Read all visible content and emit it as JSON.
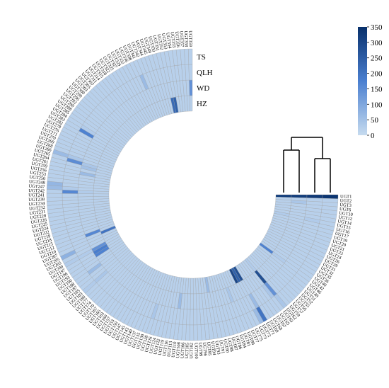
{
  "chart_data": {
    "type": "heatmap",
    "layout": "circular",
    "tracks": [
      "TS",
      "QLH",
      "WD",
      "HZ"
    ],
    "genes": [
      "UGT1",
      "UGT2",
      "UGT3",
      "UGT6",
      "UGT10",
      "UGT12",
      "UGT14",
      "UGT15",
      "UGT16",
      "UGT17",
      "UGT19",
      "UGT20",
      "UGT21",
      "UGT23",
      "UGT24",
      "UGT26",
      "UGT29",
      "UGT31",
      "UGT32",
      "UGT35",
      "UGT36",
      "UGT40",
      "UGT42",
      "UGT46",
      "UGT49",
      "UGT51",
      "UGT52",
      "UGT55",
      "UGT56",
      "UGT57",
      "UGT59",
      "UGT62",
      "UGT63",
      "UGT65",
      "UGT67",
      "UGT68",
      "UGT69",
      "UGT71",
      "UGT72",
      "UGT73",
      "UGT75",
      "UGT77",
      "UGT80",
      "UGT81",
      "UGT84",
      "UGT86",
      "UGT87",
      "UGT88",
      "UGT90",
      "UGT91",
      "UGT93",
      "UGT94",
      "UGT95",
      "UGT96",
      "UGT99",
      "UGT100",
      "UGT102",
      "UGT105",
      "UGT106",
      "UGT108",
      "UGT110",
      "UGT113",
      "UGT116",
      "UGT119",
      "UGT122",
      "UGT124",
      "UGT126",
      "UGT128",
      "UGT130",
      "UGT135",
      "UGT137",
      "UGT140",
      "UGT143",
      "UGT145",
      "UGT147",
      "UGT150",
      "UGT153",
      "UGT157",
      "UGT160",
      "UGT163",
      "UGT165",
      "UGT167",
      "UGT170",
      "UGT174",
      "UGT177",
      "UGT180",
      "UGT183",
      "UGT185",
      "UGT187",
      "UGT188",
      "UGT190",
      "UGT193",
      "UGT196",
      "UGT197",
      "UGT200",
      "UGT203",
      "UGT205",
      "UGT207",
      "UGT210",
      "UGT212",
      "UGT215",
      "UGT218",
      "UGT219",
      "UGT222",
      "UGT224",
      "UGT225",
      "UGT226",
      "UGT228",
      "UGT231",
      "UGT232",
      "UGT234",
      "UGT238",
      "UGT241",
      "UGT242",
      "UGT247",
      "UGT248",
      "UGT250",
      "UGT253",
      "UGT256",
      "UGT259",
      "UGT261",
      "UGT264",
      "UGT265",
      "UGT266",
      "UGT268",
      "UGT269",
      "UGT270",
      "UGT271",
      "UGT276",
      "UGT278",
      "UGT282",
      "UGT283",
      "UGT284",
      "UGT285",
      "UGT288",
      "UGT290",
      "UGT292",
      "UGT296",
      "UGT299",
      "UGT300",
      "UGT303",
      "UGT305",
      "UGT307",
      "UGT311",
      "UGT314",
      "UGT315",
      "UGT318",
      "UGT322",
      "UGT325",
      "UGT327",
      "UGT329",
      "UGT332",
      "UGT336",
      "UGT338",
      "UGT341",
      "UGT342",
      "UGT344",
      "UGT345",
      "UGT349",
      "UGT350",
      "UGT351",
      "UGT352",
      "UGT353",
      "UGT354",
      "UGT355",
      "UGT356",
      "UGT357",
      "UGT358",
      "UGT359"
    ],
    "highlights": [
      {
        "gene": "UGT1",
        "TS": 340,
        "QLH": 330,
        "WD": 320,
        "HZ": 320
      },
      {
        "gene": "UGT3",
        "TS": 20,
        "QLH": 20,
        "WD": 40,
        "HZ": 20
      },
      {
        "gene": "UGT15",
        "TS": 20,
        "QLH": 30,
        "WD": 20,
        "HZ": 30
      },
      {
        "gene": "UGT42",
        "TS": 20,
        "QLH": 20,
        "WD": 30,
        "HZ": 170
      },
      {
        "gene": "UGT62",
        "TS": 40,
        "QLH": 140,
        "WD": 280,
        "HZ": 30
      },
      {
        "gene": "UGT63",
        "TS": 20,
        "QLH": 40,
        "WD": 20,
        "HZ": 20
      },
      {
        "gene": "UGT71",
        "TS": 200,
        "QLH": 60,
        "WD": 20,
        "HZ": 280
      },
      {
        "gene": "UGT72",
        "TS": 60,
        "QLH": 20,
        "WD": 20,
        "HZ": 240
      },
      {
        "gene": "UGT73",
        "TS": 20,
        "QLH": 20,
        "WD": 20,
        "HZ": 300
      },
      {
        "gene": "UGT81",
        "TS": 20,
        "QLH": 20,
        "WD": 40,
        "HZ": 20
      },
      {
        "gene": "UGT93",
        "TS": 20,
        "QLH": 20,
        "WD": 20,
        "HZ": 60
      },
      {
        "gene": "UGT110",
        "TS": 20,
        "QLH": 20,
        "WD": 60,
        "HZ": 20
      },
      {
        "gene": "UGT128",
        "TS": 20,
        "QLH": 40,
        "WD": 20,
        "HZ": 20
      },
      {
        "gene": "UGT183",
        "TS": 30,
        "QLH": 40,
        "WD": 20,
        "HZ": 20
      },
      {
        "gene": "UGT188",
        "TS": 20,
        "QLH": 60,
        "WD": 20,
        "HZ": 20
      },
      {
        "gene": "UGT196",
        "TS": 20,
        "QLH": 20,
        "WD": 170,
        "HZ": 20
      },
      {
        "gene": "UGT197",
        "TS": 20,
        "QLH": 20,
        "WD": 180,
        "HZ": 20
      },
      {
        "gene": "UGT200",
        "TS": 30,
        "QLH": 30,
        "WD": 140,
        "HZ": 20
      },
      {
        "gene": "UGT205",
        "TS": 80,
        "QLH": 20,
        "WD": 20,
        "HZ": 20
      },
      {
        "gene": "UGT210",
        "TS": 20,
        "QLH": 20,
        "WD": 20,
        "HZ": 200
      },
      {
        "gene": "UGT212",
        "TS": 20,
        "QLH": 20,
        "WD": 160,
        "HZ": 20
      },
      {
        "gene": "UGT242",
        "TS": 20,
        "QLH": 160,
        "WD": 30,
        "HZ": 20
      },
      {
        "gene": "UGT247",
        "TS": 60,
        "QLH": 30,
        "WD": 20,
        "HZ": 20
      },
      {
        "gene": "UGT248",
        "TS": 70,
        "QLH": 20,
        "WD": 20,
        "HZ": 20
      },
      {
        "gene": "UGT259",
        "TS": 20,
        "QLH": 20,
        "WD": 60,
        "HZ": 20
      },
      {
        "gene": "UGT264",
        "TS": 20,
        "QLH": 20,
        "WD": 50,
        "HZ": 20
      },
      {
        "gene": "UGT265",
        "TS": 20,
        "QLH": 150,
        "WD": 40,
        "HZ": 20
      },
      {
        "gene": "UGT266",
        "TS": 60,
        "QLH": 40,
        "WD": 20,
        "HZ": 20
      },
      {
        "gene": "UGT283",
        "TS": 20,
        "QLH": 170,
        "WD": 20,
        "HZ": 20
      },
      {
        "gene": "UGT284",
        "TS": 20,
        "QLH": 30,
        "WD": 20,
        "HZ": 20
      },
      {
        "gene": "UGT325",
        "TS": 20,
        "QLH": 20,
        "WD": 20,
        "HZ": 20
      },
      {
        "gene": "UGT341",
        "TS": 20,
        "QLH": 60,
        "WD": 20,
        "HZ": 20
      },
      {
        "gene": "UGT352",
        "TS": 20,
        "QLH": 20,
        "WD": 20,
        "HZ": 220
      },
      {
        "gene": "UGT353",
        "TS": 20,
        "QLH": 20,
        "WD": 20,
        "HZ": 240
      },
      {
        "gene": "UGT359",
        "TS": 20,
        "QLH": 20,
        "WD": 140,
        "HZ": 20
      }
    ],
    "default_value": 20,
    "colorbar": {
      "min": 0,
      "max": 350,
      "ticks": [
        0,
        50,
        100,
        150,
        200,
        250,
        300,
        350
      ],
      "color_low": "#c6dbef",
      "color_high": "#08306b",
      "placement": "top-right"
    },
    "dendrogram": "top-right, clustering the 4 tracks",
    "cell_border_color": "#9e9e9e"
  }
}
